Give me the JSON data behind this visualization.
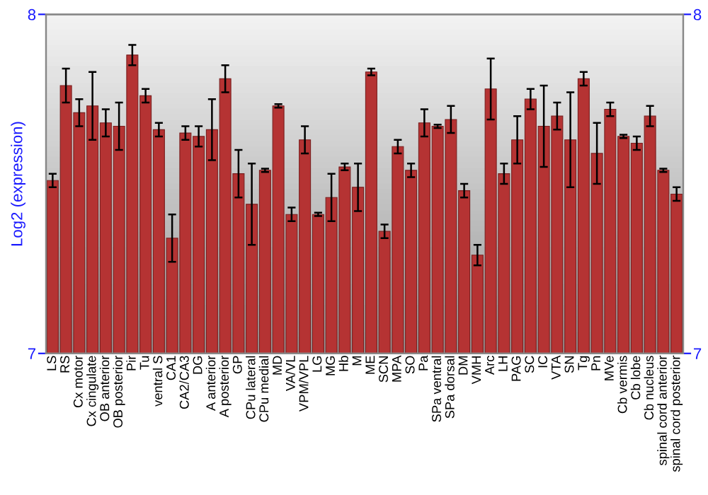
{
  "chart_data": {
    "type": "bar",
    "ylabel": "Log2 (expression)",
    "categories": [
      "LS",
      "RS",
      "Cx motor",
      "Cx cingulate",
      "OB anterior",
      "OB posterior",
      "Pir",
      "Tu",
      "ventral S",
      "CA1",
      "CA2/CA3",
      "DG",
      "A anterior",
      "A posterior",
      "GP",
      "CPu lateral",
      "CPu medial",
      "MD",
      "VA/VL",
      "VPM/VPL",
      "LG",
      "MG",
      "Hb",
      "M",
      "ME",
      "SCN",
      "MPA",
      "SO",
      "Pa",
      "SPa ventral",
      "SPa dorsal",
      "DM",
      "VMH",
      "Arc",
      "LH",
      "PAG",
      "SC",
      "IC",
      "VTA",
      "SN",
      "Tg",
      "Pn",
      "MVe",
      "Cb vermis",
      "Cb lobe",
      "Cb nucleus",
      "spinal cord anterior",
      "spinal cord posterior"
    ],
    "values": [
      7.51,
      7.79,
      7.71,
      7.73,
      7.68,
      7.67,
      7.88,
      7.76,
      7.66,
      7.34,
      7.65,
      7.64,
      7.66,
      7.81,
      7.53,
      7.44,
      7.54,
      7.73,
      7.41,
      7.63,
      7.41,
      7.46,
      7.55,
      7.49,
      7.83,
      7.36,
      7.61,
      7.54,
      7.68,
      7.67,
      7.69,
      7.48,
      7.29,
      7.78,
      7.53,
      7.63,
      7.75,
      7.67,
      7.7,
      7.63,
      7.81,
      7.59,
      7.72,
      7.64,
      7.62,
      7.7,
      7.54,
      7.47
    ],
    "errors": [
      0.02,
      0.05,
      0.04,
      0.1,
      0.04,
      0.07,
      0.03,
      0.02,
      0.02,
      0.07,
      0.02,
      0.03,
      0.09,
      0.04,
      0.07,
      0.12,
      0.005,
      0.005,
      0.02,
      0.04,
      0.005,
      0.07,
      0.01,
      0.07,
      0.01,
      0.02,
      0.02,
      0.02,
      0.04,
      0.005,
      0.04,
      0.02,
      0.03,
      0.09,
      0.03,
      0.07,
      0.03,
      0.12,
      0.04,
      0.14,
      0.02,
      0.09,
      0.02,
      0.005,
      0.02,
      0.03,
      0.005,
      0.02
    ],
    "color": "#b53333",
    "ylim": [
      7,
      8
    ],
    "yticks": [
      7,
      8
    ],
    "y2lim": [
      7,
      8
    ],
    "y2ticks": [
      7,
      8
    ],
    "grid": false,
    "legend": false
  }
}
